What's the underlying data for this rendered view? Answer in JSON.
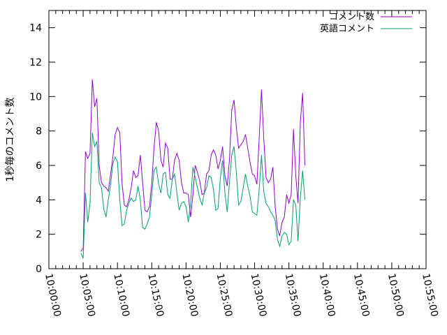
{
  "chart_data": {
    "type": "line",
    "title": "",
    "xlabel": "",
    "ylabel": "1秒毎のコメント数",
    "xlim": [
      "10:00:00",
      "10:55:00"
    ],
    "ylim": [
      0,
      15
    ],
    "x_tick_labels": [
      "10:00:00",
      "10:05:00",
      "10:10:00",
      "10:15:00",
      "10:20:00",
      "10:25:00",
      "10:30:00",
      "10:35:00",
      "10:40:00",
      "10:45:00",
      "10:50:00",
      "10:55:00"
    ],
    "y_ticks": [
      0,
      2,
      4,
      6,
      8,
      10,
      12,
      14
    ],
    "grid": false,
    "legend_position": "top-right",
    "series": [
      {
        "name": "コメント数",
        "color": "#9400d3",
        "points": [
          [
            "10:04:40",
            1.0
          ],
          [
            "10:05:00",
            1.2
          ],
          [
            "10:05:20",
            6.8
          ],
          [
            "10:05:40",
            6.4
          ],
          [
            "10:06:00",
            6.7
          ],
          [
            "10:06:20",
            11.0
          ],
          [
            "10:06:40",
            9.4
          ],
          [
            "10:07:00",
            9.9
          ],
          [
            "10:07:20",
            6.0
          ],
          [
            "10:07:40",
            5.0
          ],
          [
            "10:08:00",
            4.8
          ],
          [
            "10:08:20",
            4.7
          ],
          [
            "10:08:40",
            4.5
          ],
          [
            "10:09:00",
            5.5
          ],
          [
            "10:09:20",
            6.5
          ],
          [
            "10:09:40",
            7.8
          ],
          [
            "10:10:00",
            8.2
          ],
          [
            "10:10:20",
            7.9
          ],
          [
            "10:10:40",
            5.0
          ],
          [
            "10:11:00",
            3.7
          ],
          [
            "10:11:20",
            3.6
          ],
          [
            "10:11:40",
            4.0
          ],
          [
            "10:12:00",
            4.7
          ],
          [
            "10:12:20",
            5.7
          ],
          [
            "10:12:40",
            5.3
          ],
          [
            "10:13:00",
            5.4
          ],
          [
            "10:13:20",
            6.6
          ],
          [
            "10:13:40",
            5.0
          ],
          [
            "10:14:00",
            3.4
          ],
          [
            "10:14:20",
            3.3
          ],
          [
            "10:14:40",
            3.6
          ],
          [
            "10:15:00",
            5.0
          ],
          [
            "10:15:20",
            7.0
          ],
          [
            "10:15:40",
            8.5
          ],
          [
            "10:16:00",
            8.0
          ],
          [
            "10:16:20",
            6.3
          ],
          [
            "10:16:40",
            5.9
          ],
          [
            "10:17:00",
            7.3
          ],
          [
            "10:17:20",
            7.0
          ],
          [
            "10:17:40",
            5.2
          ],
          [
            "10:18:00",
            5.2
          ],
          [
            "10:18:20",
            6.3
          ],
          [
            "10:18:40",
            6.7
          ],
          [
            "10:19:00",
            6.3
          ],
          [
            "10:19:20",
            5.0
          ],
          [
            "10:19:40",
            4.4
          ],
          [
            "10:20:00",
            4.4
          ],
          [
            "10:20:20",
            4.3
          ],
          [
            "10:20:40",
            3.0
          ],
          [
            "10:21:00",
            4.3
          ],
          [
            "10:21:20",
            6.0
          ],
          [
            "10:21:40",
            5.6
          ],
          [
            "10:22:00",
            5.1
          ],
          [
            "10:22:20",
            4.3
          ],
          [
            "10:22:40",
            4.4
          ],
          [
            "10:23:00",
            5.5
          ],
          [
            "10:23:20",
            5.7
          ],
          [
            "10:23:40",
            6.6
          ],
          [
            "10:24:00",
            6.9
          ],
          [
            "10:24:20",
            6.6
          ],
          [
            "10:24:40",
            5.8
          ],
          [
            "10:25:00",
            6.3
          ],
          [
            "10:25:20",
            7.1
          ],
          [
            "10:25:40",
            5.4
          ],
          [
            "10:26:00",
            4.8
          ],
          [
            "10:26:20",
            6.3
          ],
          [
            "10:26:40",
            9.2
          ],
          [
            "10:27:00",
            9.8
          ],
          [
            "10:27:20",
            8.2
          ],
          [
            "10:27:40",
            7.0
          ],
          [
            "10:28:00",
            7.2
          ],
          [
            "10:28:20",
            7.4
          ],
          [
            "10:28:40",
            7.8
          ],
          [
            "10:29:00",
            7.0
          ],
          [
            "10:29:20",
            6.2
          ],
          [
            "10:29:40",
            5.5
          ],
          [
            "10:30:00",
            5.4
          ],
          [
            "10:30:20",
            4.9
          ],
          [
            "10:30:40",
            7.6
          ],
          [
            "10:31:00",
            10.4
          ],
          [
            "10:31:20",
            7.6
          ],
          [
            "10:31:40",
            5.3
          ],
          [
            "10:32:00",
            5.0
          ],
          [
            "10:32:20",
            5.2
          ],
          [
            "10:32:40",
            5.9
          ],
          [
            "10:33:00",
            3.6
          ],
          [
            "10:33:20",
            2.3
          ],
          [
            "10:33:40",
            1.9
          ],
          [
            "10:34:00",
            2.7
          ],
          [
            "10:34:20",
            3.0
          ],
          [
            "10:34:40",
            4.3
          ],
          [
            "10:35:00",
            3.8
          ],
          [
            "10:35:20",
            4.3
          ],
          [
            "10:35:40",
            8.1
          ],
          [
            "10:36:00",
            5.4
          ],
          [
            "10:36:20",
            3.8
          ],
          [
            "10:36:40",
            8.5
          ],
          [
            "10:37:00",
            10.2
          ],
          [
            "10:37:20",
            6.0
          ]
        ]
      },
      {
        "name": "英語コメント",
        "color": "#009e73",
        "points": [
          [
            "10:04:40",
            0.9
          ],
          [
            "10:05:00",
            0.6
          ],
          [
            "10:05:20",
            4.4
          ],
          [
            "10:05:40",
            2.7
          ],
          [
            "10:06:00",
            3.8
          ],
          [
            "10:06:20",
            7.9
          ],
          [
            "10:06:40",
            7.1
          ],
          [
            "10:07:00",
            7.4
          ],
          [
            "10:07:20",
            5.0
          ],
          [
            "10:07:40",
            4.7
          ],
          [
            "10:08:00",
            3.5
          ],
          [
            "10:08:20",
            3.0
          ],
          [
            "10:08:40",
            4.0
          ],
          [
            "10:09:00",
            4.9
          ],
          [
            "10:09:20",
            6.1
          ],
          [
            "10:09:40",
            6.5
          ],
          [
            "10:10:00",
            6.2
          ],
          [
            "10:10:20",
            4.0
          ],
          [
            "10:10:40",
            2.5
          ],
          [
            "10:11:00",
            2.6
          ],
          [
            "10:11:20",
            3.4
          ],
          [
            "10:11:40",
            3.8
          ],
          [
            "10:12:00",
            4.1
          ],
          [
            "10:12:20",
            3.9
          ],
          [
            "10:12:40",
            4.0
          ],
          [
            "10:13:00",
            4.8
          ],
          [
            "10:13:20",
            4.0
          ],
          [
            "10:13:40",
            2.4
          ],
          [
            "10:14:00",
            2.3
          ],
          [
            "10:14:20",
            2.6
          ],
          [
            "10:14:40",
            3.0
          ],
          [
            "10:15:00",
            4.3
          ],
          [
            "10:15:20",
            5.7
          ],
          [
            "10:15:40",
            5.9
          ],
          [
            "10:16:00",
            4.9
          ],
          [
            "10:16:20",
            4.4
          ],
          [
            "10:16:40",
            5.5
          ],
          [
            "10:17:00",
            5.6
          ],
          [
            "10:17:20",
            4.3
          ],
          [
            "10:17:40",
            4.1
          ],
          [
            "10:18:00",
            5.2
          ],
          [
            "10:18:20",
            5.5
          ],
          [
            "10:18:40",
            4.4
          ],
          [
            "10:19:00",
            3.4
          ],
          [
            "10:19:20",
            3.8
          ],
          [
            "10:19:40",
            3.9
          ],
          [
            "10:20:00",
            3.6
          ],
          [
            "10:20:20",
            2.7
          ],
          [
            "10:20:40",
            3.8
          ],
          [
            "10:21:00",
            5.9
          ],
          [
            "10:21:20",
            5.3
          ],
          [
            "10:21:40",
            4.7
          ],
          [
            "10:22:00",
            4.1
          ],
          [
            "10:22:20",
            3.7
          ],
          [
            "10:22:40",
            4.4
          ],
          [
            "10:23:00",
            4.7
          ],
          [
            "10:23:20",
            5.4
          ],
          [
            "10:23:40",
            5.3
          ],
          [
            "10:24:00",
            4.6
          ],
          [
            "10:24:20",
            3.4
          ],
          [
            "10:24:40",
            3.5
          ],
          [
            "10:25:00",
            5.3
          ],
          [
            "10:25:20",
            6.3
          ],
          [
            "10:25:40",
            4.4
          ],
          [
            "10:26:00",
            3.3
          ],
          [
            "10:26:20",
            5.0
          ],
          [
            "10:26:40",
            6.6
          ],
          [
            "10:27:00",
            7.1
          ],
          [
            "10:27:20",
            5.6
          ],
          [
            "10:27:40",
            3.7
          ],
          [
            "10:28:00",
            3.9
          ],
          [
            "10:28:20",
            4.7
          ],
          [
            "10:28:40",
            5.5
          ],
          [
            "10:29:00",
            4.8
          ],
          [
            "10:29:20",
            4.2
          ],
          [
            "10:29:40",
            3.3
          ],
          [
            "10:30:00",
            3.2
          ],
          [
            "10:30:20",
            3.1
          ],
          [
            "10:30:40",
            4.6
          ],
          [
            "10:31:00",
            6.6
          ],
          [
            "10:31:20",
            4.5
          ],
          [
            "10:31:40",
            3.8
          ],
          [
            "10:32:00",
            3.6
          ],
          [
            "10:32:20",
            3.3
          ],
          [
            "10:32:40",
            3.1
          ],
          [
            "10:33:00",
            2.8
          ],
          [
            "10:33:20",
            1.7
          ],
          [
            "10:33:40",
            1.3
          ],
          [
            "10:34:00",
            1.9
          ],
          [
            "10:34:20",
            2.1
          ],
          [
            "10:34:40",
            2.0
          ],
          [
            "10:35:00",
            1.4
          ],
          [
            "10:35:20",
            1.6
          ],
          [
            "10:35:40",
            4.0
          ],
          [
            "10:36:00",
            3.7
          ],
          [
            "10:36:20",
            1.6
          ],
          [
            "10:36:40",
            4.1
          ],
          [
            "10:37:00",
            5.7
          ],
          [
            "10:37:20",
            4.0
          ]
        ]
      }
    ]
  }
}
